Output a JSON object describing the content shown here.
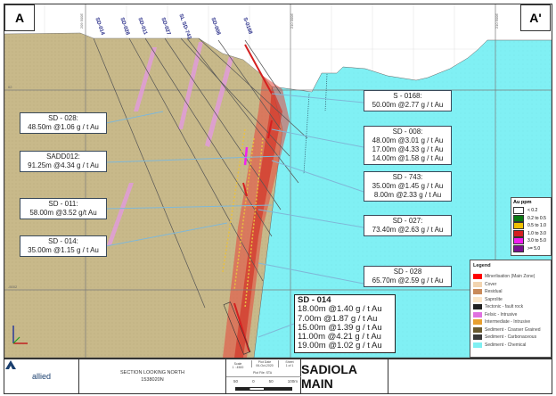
{
  "section_labels": {
    "left": "A",
    "right": "A'"
  },
  "grid_labels": {
    "e1": "209 500E",
    "e2": "210 000E",
    "e3": "210 500E",
    "elev1": "02",
    "elev2": "-5002"
  },
  "drillholes": [
    "SD-014",
    "SD-028",
    "SD-011",
    "SD-027",
    "SL SD-743",
    "SD-008",
    "S-0168"
  ],
  "callouts_left": [
    {
      "hole": "SD - 028:",
      "lines": [
        "48.50m @1.06 g / t  Au"
      ]
    },
    {
      "hole": "SADD012:",
      "lines": [
        "91.25m @4.34 g / t  Au"
      ]
    },
    {
      "hole": "SD - 011:",
      "lines": [
        "58.00m @3.52 g/t  Au"
      ]
    },
    {
      "hole": "SD - 014:",
      "lines": [
        "35.00m @1.15 g / t  Au"
      ]
    }
  ],
  "callouts_right": [
    {
      "hole": "S - 0168:",
      "lines": [
        "50.00m @2.77 g / t  Au"
      ]
    },
    {
      "hole": "SD - 008:",
      "lines": [
        "48.00m @3.01 g / t  Au",
        "17.00m @4.33 g / t  Au",
        "14.00m @1.58 g / t Au"
      ]
    },
    {
      "hole": "SD - 743:",
      "lines": [
        "35.00m @1.45 g / t  Au",
        "8.00m @2.33 g / t  Au"
      ]
    },
    {
      "hole": "SD - 027:",
      "lines": [
        "73.40m @2.63 g / t  Au"
      ]
    },
    {
      "hole": "SD - 028",
      "lines": [
        "65.70m @2.59 g / t  Au"
      ]
    }
  ],
  "callout_main": {
    "hole": "SD - 014",
    "lines": [
      "18.00m @1.40 g / t  Au",
      "7.00m @1.87 g / t  Au",
      "15.00m @1.39 g / t  Au",
      "11.00m @4.21 g / t  Au",
      "19.00m @1.02 g / t  Au"
    ]
  },
  "au_ppm": {
    "title": "Au ppm",
    "items": [
      {
        "label": "< 0.2",
        "color": "#ffffff"
      },
      {
        "label": "0.2 to 0.5",
        "color": "#0a7a12"
      },
      {
        "label": "0.5 to 1.0",
        "color": "#f0c000"
      },
      {
        "label": "1.0 to 3.0",
        "color": "#d42020"
      },
      {
        "label": "3.0 to 5.0",
        "color": "#f020f0"
      },
      {
        "label": ">= 5.0",
        "color": "#7a1090"
      }
    ]
  },
  "legend": {
    "title": "Legend",
    "items": [
      {
        "label": "Minerlisation (Main Zone)",
        "color": "#ff0000"
      },
      {
        "label": "Cover",
        "color": "#f2d4b0"
      },
      {
        "label": "Residual",
        "color": "#c98a5a"
      },
      {
        "label": "Saprolite",
        "color": "#fbe6c8"
      },
      {
        "label": "Tectonic - fault rock",
        "color": "#222222"
      },
      {
        "label": "Felsic - Intrusive",
        "color": "#e070e0"
      },
      {
        "label": "Intermediate - Intrusive",
        "color": "#e8a030"
      },
      {
        "label": "Sediment - Coarser Grained",
        "color": "#6a5a30"
      },
      {
        "label": "Sediment - Carbonaceous",
        "color": "#3a3a3a"
      },
      {
        "label": "Sediment - Chemical",
        "color": "#7ff0f2"
      }
    ]
  },
  "colors": {
    "sediment_coarse": "#c8b98a",
    "sediment_chemical": "#80f0f4",
    "mineralisation": "#e8453a",
    "felsic": "#e39be0"
  },
  "title_block": {
    "logo_text": "allied",
    "logo_sub": "GOLD",
    "section_line1": "SECTION LOOKING NORTH",
    "section_line2": "1538020N",
    "scale_label": "Scale",
    "scale_value": "1 : 4500",
    "plot_date_label": "Plot Date",
    "plot_date": "06-Oct-2020",
    "sheet_label": "Sheet",
    "sheet": "1 of 1",
    "plot_file": "Plot File: STA",
    "scalebar": [
      "50",
      "0",
      "50",
      "100m"
    ],
    "title": "SADIOLA MAIN"
  }
}
